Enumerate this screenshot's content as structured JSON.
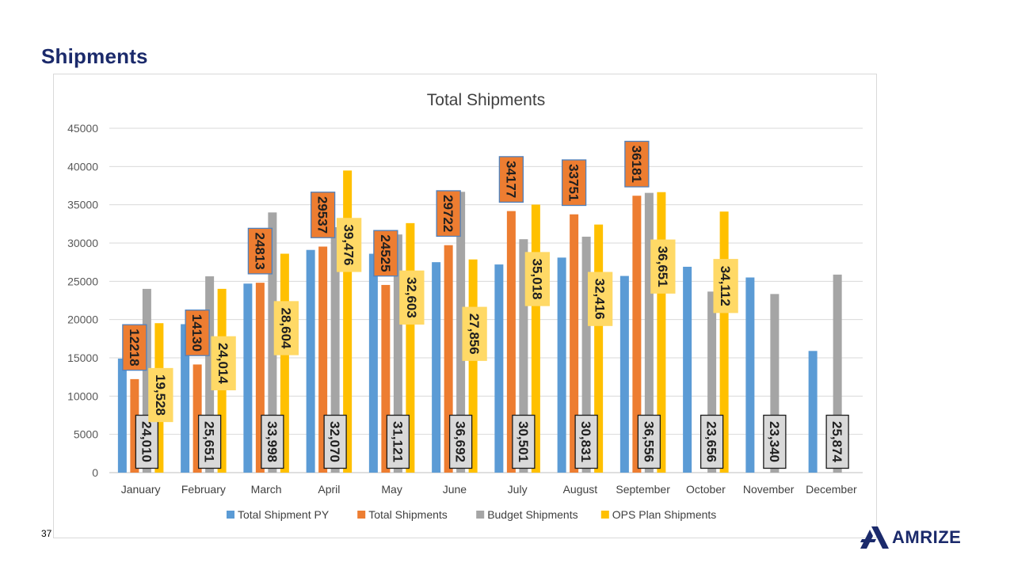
{
  "slide": {
    "title": "Shipments",
    "page_number": "37"
  },
  "logo": {
    "text": "AMRIZE",
    "color": "#1b2a6b"
  },
  "chart_data": {
    "type": "bar",
    "title": "Total Shipments",
    "xlabel": "",
    "ylabel": "",
    "ylim": [
      0,
      45000
    ],
    "yticks": [
      "0",
      "5000",
      "10000",
      "15000",
      "20000",
      "25000",
      "30000",
      "35000",
      "40000",
      "45000"
    ],
    "grid": true,
    "legend_position": "bottom",
    "categories": [
      "January",
      "February",
      "March",
      "April",
      "May",
      "June",
      "July",
      "August",
      "September",
      "October",
      "November",
      "December"
    ],
    "series": [
      {
        "name": "Total Shipment PY",
        "color": "#5b9bd5",
        "values": [
          14900,
          19400,
          24700,
          29100,
          28600,
          27500,
          27200,
          28100,
          25700,
          26900,
          25500,
          15900
        ]
      },
      {
        "name": "Total Shipments",
        "color": "#ed7d31",
        "values": [
          12218,
          14130,
          24813,
          29537,
          24525,
          29722,
          34177,
          33751,
          36181,
          null,
          null,
          null
        ],
        "data_labels": [
          "12218",
          "14130",
          "24813",
          "29537",
          "24525",
          "29722",
          "34177",
          "33751",
          "36181",
          "",
          "",
          ""
        ]
      },
      {
        "name": "Budget Shipments",
        "color": "#a5a5a5",
        "values": [
          24010,
          25651,
          33998,
          32070,
          31121,
          36692,
          30501,
          30831,
          36556,
          23656,
          23340,
          25874
        ],
        "data_labels": [
          "24,010",
          "25,651",
          "33,998",
          "32,070",
          "31,121",
          "36,692",
          "30,501",
          "30,831",
          "36,556",
          "23,656",
          "23,340",
          "25,874"
        ]
      },
      {
        "name": "OPS Plan Shipments",
        "color": "#ffc000",
        "values": [
          19528,
          24014,
          28604,
          39476,
          32603,
          27856,
          35018,
          32416,
          36651,
          34112,
          null,
          null
        ],
        "data_labels": [
          "19,528",
          "24,014",
          "28,604",
          "39,476",
          "32,603",
          "27,856",
          "35,018",
          "32,416",
          "36,651",
          "34,112",
          "",
          ""
        ]
      }
    ]
  }
}
